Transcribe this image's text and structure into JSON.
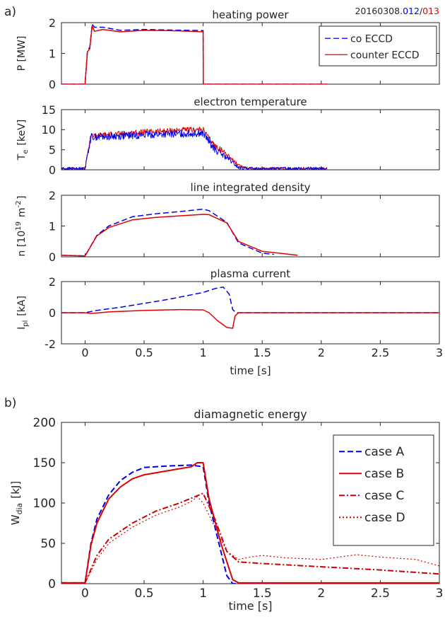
{
  "figure": {
    "panel_a_label": "a)",
    "panel_b_label": "b)",
    "shot_label": {
      "prefix": "20160308.",
      "co": "012",
      "sep": "/",
      "counter": "013"
    }
  },
  "colors": {
    "co": "#0000ee",
    "counter": "#e00000",
    "axis": "#262626"
  },
  "chart_data": [
    {
      "id": "heating-power",
      "type": "line",
      "title": "heating power",
      "xlabel": "",
      "ylabel": "P [MW]",
      "xlim": [
        -0.2,
        3
      ],
      "ylim": [
        0,
        2
      ],
      "yticks": [
        "0",
        "1",
        "2"
      ],
      "xticks": [],
      "legend": [
        "co ECCD",
        "counter ECCD"
      ],
      "legend_position": "top-right",
      "series": [
        {
          "name": "co ECCD",
          "style": "dashed",
          "color": "#0000ee",
          "x": [
            -0.2,
            0.0,
            0.02,
            0.04,
            0.06,
            0.08,
            0.15,
            0.3,
            0.5,
            0.7,
            0.9,
            1.0,
            1.001,
            1.2,
            2.05
          ],
          "y": [
            0,
            0,
            1.1,
            1.2,
            1.95,
            1.85,
            1.85,
            1.75,
            1.78,
            1.76,
            1.75,
            1.74,
            0,
            0,
            0
          ]
        },
        {
          "name": "counter ECCD",
          "style": "solid",
          "color": "#e00000",
          "x": [
            -0.2,
            0.0,
            0.02,
            0.04,
            0.06,
            0.08,
            0.15,
            0.3,
            0.5,
            0.7,
            0.9,
            1.0,
            1.001,
            1.2,
            2.05
          ],
          "y": [
            0,
            0,
            1.05,
            1.15,
            1.9,
            1.72,
            1.78,
            1.7,
            1.75,
            1.74,
            1.72,
            1.7,
            0,
            0,
            0
          ]
        }
      ]
    },
    {
      "id": "electron-temperature",
      "type": "line",
      "title": "electron temperature",
      "xlabel": "",
      "ylabel": "T_e [keV]",
      "xlim": [
        -0.2,
        3
      ],
      "ylim": [
        0,
        15
      ],
      "yticks": [
        "0",
        "5",
        "10",
        "15"
      ],
      "xticks": [],
      "series": [
        {
          "name": "",
          "style": "noisy",
          "color": "#e00000",
          "noise": 0.7,
          "x": [
            -0.2,
            0.0,
            0.03,
            0.05,
            0.2,
            0.5,
            0.8,
            1.0,
            1.05,
            1.1,
            1.2,
            1.3,
            1.4,
            2.05
          ],
          "y": [
            0.3,
            0.3,
            5.5,
            8.5,
            8.8,
            9.4,
            9.9,
            10.0,
            7.8,
            6.0,
            4.0,
            1.0,
            0.3,
            0.3
          ]
        },
        {
          "name": "",
          "style": "noisy",
          "color": "#0000ee",
          "noise": 0.9,
          "x": [
            -0.2,
            0.0,
            0.03,
            0.05,
            0.2,
            0.5,
            0.8,
            1.0,
            1.05,
            1.1,
            1.2,
            1.3,
            1.4,
            2.05
          ],
          "y": [
            0.3,
            0.3,
            5.2,
            8.2,
            8.3,
            8.7,
            9.0,
            9.1,
            7.0,
            5.0,
            3.0,
            0.5,
            0.3,
            0.3
          ]
        }
      ]
    },
    {
      "id": "line-integrated-density",
      "type": "line",
      "title": "line integrated density",
      "xlabel": "",
      "ylabel": "n [10^19 m^-2]",
      "xlim": [
        -0.2,
        3
      ],
      "ylim": [
        0,
        2
      ],
      "yticks": [
        "0",
        "1",
        "2"
      ],
      "xticks": [],
      "series": [
        {
          "name": "",
          "style": "dashed",
          "color": "#0000ee",
          "x": [
            -0.2,
            0.0,
            0.1,
            0.2,
            0.4,
            0.6,
            0.8,
            1.0,
            1.05,
            1.2,
            1.3,
            1.5,
            1.6
          ],
          "y": [
            0.05,
            0.03,
            0.7,
            1.0,
            1.3,
            1.4,
            1.47,
            1.55,
            1.5,
            1.12,
            0.45,
            0.12,
            0.08
          ]
        },
        {
          "name": "",
          "style": "solid",
          "color": "#e00000",
          "x": [
            -0.2,
            0.0,
            0.1,
            0.2,
            0.4,
            0.6,
            0.8,
            1.0,
            1.05,
            1.2,
            1.3,
            1.5,
            1.8
          ],
          "y": [
            0.05,
            0.03,
            0.68,
            0.95,
            1.2,
            1.28,
            1.33,
            1.38,
            1.37,
            1.1,
            0.5,
            0.18,
            0.05
          ]
        }
      ]
    },
    {
      "id": "plasma-current",
      "type": "line",
      "title": "plasma current",
      "xlabel": "time [s]",
      "ylabel": "I_pl [kA]",
      "xlim": [
        -0.2,
        3
      ],
      "ylim": [
        -2,
        2
      ],
      "yticks": [
        "-2",
        "0",
        "2"
      ],
      "xticks": [
        "0",
        "0.5",
        "1",
        "1.5",
        "2",
        "2.5",
        "3"
      ],
      "series": [
        {
          "name": "",
          "style": "dashed",
          "color": "#0000ee",
          "x": [
            -0.2,
            0.0,
            0.1,
            0.3,
            0.5,
            0.7,
            0.9,
            1.0,
            1.1,
            1.17,
            1.22,
            1.25,
            1.28,
            3.0
          ],
          "y": [
            0,
            0,
            0.15,
            0.35,
            0.6,
            0.85,
            1.15,
            1.3,
            1.55,
            1.65,
            1.2,
            0.2,
            0,
            0
          ]
        },
        {
          "name": "",
          "style": "solid",
          "color": "#e00000",
          "x": [
            -0.2,
            0.0,
            0.05,
            0.2,
            0.5,
            0.8,
            1.0,
            1.05,
            1.12,
            1.2,
            1.25,
            1.27,
            1.3,
            3.0
          ],
          "y": [
            0,
            0,
            -0.05,
            0.05,
            0.15,
            0.2,
            0.18,
            0,
            -0.5,
            -0.95,
            -1.0,
            -0.2,
            0,
            0
          ]
        }
      ]
    },
    {
      "id": "diamagnetic-energy",
      "type": "line",
      "title": "diamagnetic energy",
      "xlabel": "time [s]",
      "ylabel": "W_dia [kJ]",
      "xlim": [
        -0.2,
        3
      ],
      "ylim": [
        0,
        200
      ],
      "yticks": [
        "0",
        "50",
        "100",
        "150",
        "200"
      ],
      "xticks": [
        "0",
        "0.5",
        "1",
        "1.5",
        "2",
        "2.5",
        "3"
      ],
      "legend": [
        "case A",
        "case B",
        "case C",
        "case D"
      ],
      "legend_position": "top-right",
      "series": [
        {
          "name": "case A",
          "style": "dashed",
          "color": "#0000ee",
          "x": [
            -0.2,
            0.0,
            0.05,
            0.1,
            0.2,
            0.3,
            0.4,
            0.5,
            0.7,
            0.9,
            1.0,
            1.05,
            1.15,
            1.2,
            1.25,
            1.7
          ],
          "y": [
            1,
            1,
            50,
            80,
            110,
            128,
            138,
            144,
            146,
            147,
            145,
            100,
            40,
            10,
            0,
            0
          ]
        },
        {
          "name": "case B",
          "style": "solid",
          "color": "#e00000",
          "x": [
            -0.2,
            0.0,
            0.05,
            0.1,
            0.2,
            0.3,
            0.4,
            0.5,
            0.7,
            0.9,
            0.95,
            1.0,
            1.05,
            1.15,
            1.25,
            1.3,
            3.0
          ],
          "y": [
            1,
            1,
            48,
            75,
            105,
            120,
            130,
            135,
            140,
            145,
            150,
            150,
            105,
            50,
            5,
            1,
            1
          ]
        },
        {
          "name": "case C",
          "style": "dashdot",
          "color": "#cc0000",
          "x": [
            -0.2,
            0.0,
            0.1,
            0.2,
            0.4,
            0.6,
            0.8,
            1.0,
            1.1,
            1.2,
            1.3,
            1.5,
            2.0,
            2.5,
            3.0
          ],
          "y": [
            1,
            1,
            35,
            55,
            75,
            90,
            100,
            112,
            80,
            40,
            27,
            25,
            21,
            17,
            12
          ]
        },
        {
          "name": "case D",
          "style": "dotted",
          "color": "#cc0000",
          "x": [
            -0.2,
            0.0,
            0.1,
            0.2,
            0.4,
            0.6,
            0.8,
            0.9,
            0.95,
            1.0,
            1.1,
            1.2,
            1.3,
            1.4,
            1.5,
            1.7,
            2.0,
            2.3,
            2.5,
            2.8,
            3.0
          ],
          "y": [
            1,
            1,
            30,
            50,
            70,
            85,
            95,
            102,
            108,
            100,
            70,
            40,
            30,
            33,
            35,
            32,
            30,
            36,
            33,
            30,
            22
          ]
        }
      ]
    }
  ]
}
